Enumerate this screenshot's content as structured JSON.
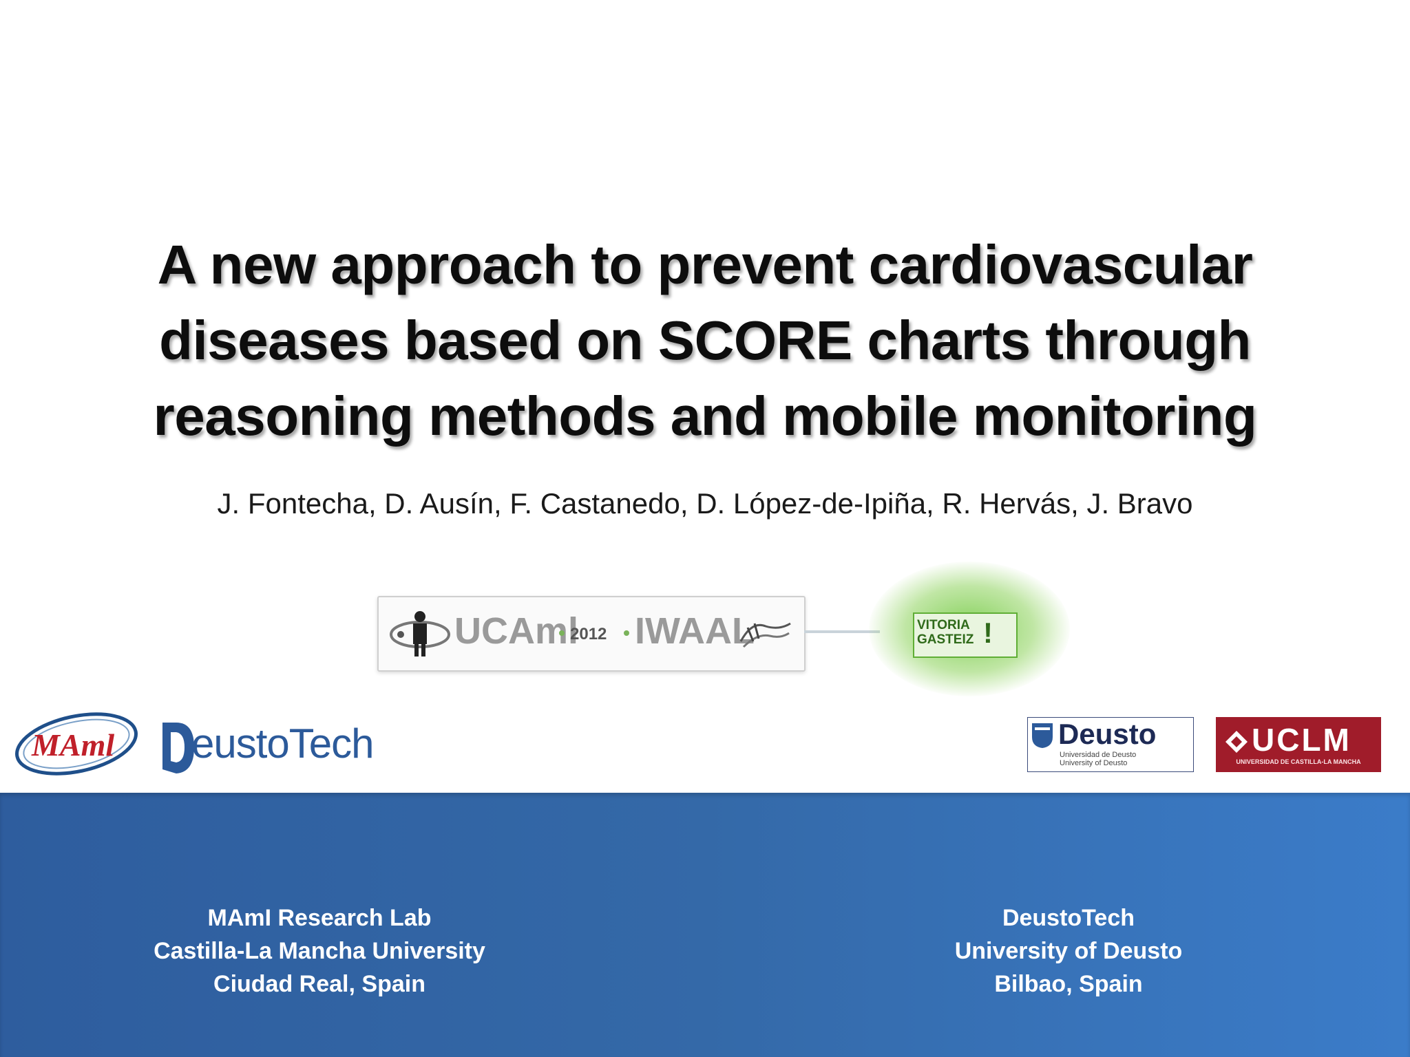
{
  "slide": {
    "title_lines": [
      "A new approach to prevent cardiovascular",
      "diseases based on SCORE charts through",
      "reasoning methods and mobile monitoring"
    ],
    "authors": "J. Fontecha, D. Ausín, F. Castanedo, D. López-de-Ipiña, R. Hervás, J. Bravo"
  },
  "conference_banner": {
    "ucaml": "UCAml",
    "year": "2012",
    "iwaal": "IWAAL",
    "vitoria_line1": "VITORIA",
    "vitoria_line2": "GASTEIZ",
    "vitoria_mark": "!"
  },
  "logos": {
    "mami": "MAml",
    "deustotech_bold": "D",
    "deustotech_rest": "eustoTech",
    "deusto": "Deusto",
    "deusto_sub1": "Universidad de Deusto",
    "deusto_sub2": "University of Deusto",
    "uclm": "UCLM",
    "uclm_sub": "UNIVERSIDAD DE CASTILLA-LA MANCHA"
  },
  "footer": {
    "left": [
      "MAmI Research Lab",
      "Castilla-La Mancha University",
      "Ciudad Real, Spain"
    ],
    "right": [
      "DeustoTech",
      "University of Deusto",
      "Bilbao, Spain"
    ]
  },
  "colors": {
    "footer_start": "#2e5d9e",
    "footer_end": "#3b7cc9",
    "uclm_red": "#a01c2a",
    "deusto_navy": "#1d2a55",
    "deustotech_blue": "#2c5a9a"
  }
}
